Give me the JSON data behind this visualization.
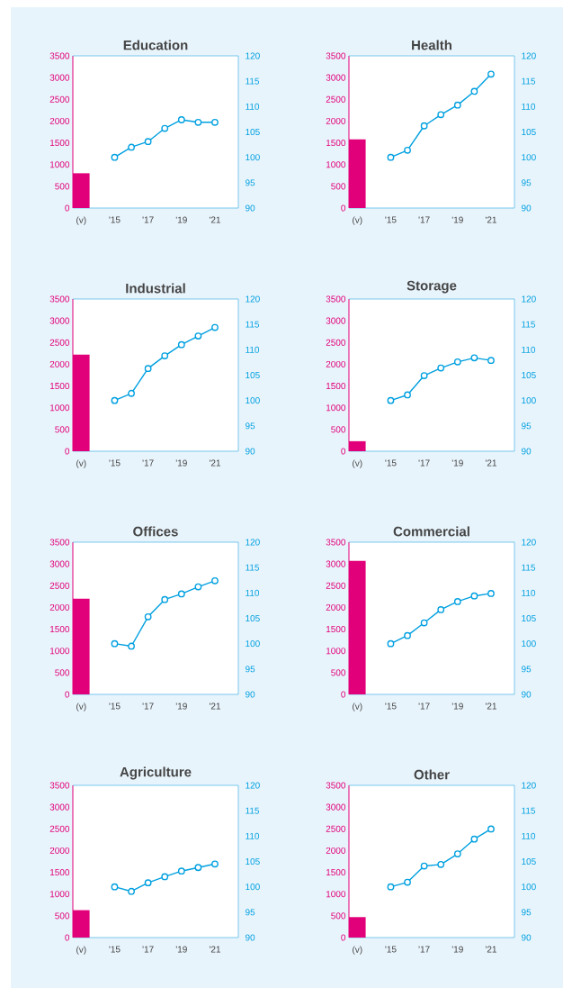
{
  "chart_data": [
    {
      "type": "bar",
      "title": "Education",
      "categories": [
        "(v)",
        null,
        "'15",
        null,
        "'17",
        null,
        "'19",
        null,
        "'21"
      ],
      "ylim": [
        0,
        3500
      ],
      "yticks": [
        0,
        500,
        1000,
        1500,
        2000,
        2500,
        3000,
        3500
      ],
      "y2lim": [
        90,
        120
      ],
      "y2ticks": [
        90,
        95,
        100,
        105,
        110,
        115,
        120
      ],
      "series": [
        {
          "color": "#e2007a",
          "values": [
            800,
            null,
            null,
            null,
            null,
            null,
            null,
            null,
            null
          ]
        },
        {
          "type": "line",
          "axis": "y2",
          "marker": "circle",
          "color": "#00a0e0",
          "values": [
            null,
            null,
            100,
            102,
            103.1,
            105.7,
            107.4,
            106.9,
            106.9
          ]
        }
      ]
    },
    {
      "type": "bar",
      "title": "Health",
      "categories": [
        "(v)",
        null,
        "'15",
        null,
        "'17",
        null,
        "'19",
        null,
        "'21"
      ],
      "ylim": [
        0,
        3500
      ],
      "yticks": [
        0,
        500,
        1000,
        1500,
        2000,
        2500,
        3000,
        3500
      ],
      "y2lim": [
        90,
        120
      ],
      "y2ticks": [
        90,
        95,
        100,
        105,
        110,
        115,
        120
      ],
      "series": [
        {
          "color": "#e2007a",
          "values": [
            1580,
            null,
            null,
            null,
            null,
            null,
            null,
            null,
            null
          ]
        },
        {
          "type": "line",
          "axis": "y2",
          "marker": "circle",
          "color": "#00a0e0",
          "values": [
            null,
            null,
            100,
            101.4,
            106.2,
            108.4,
            110.3,
            113,
            116.4
          ]
        }
      ]
    },
    {
      "type": "bar",
      "title": "Industrial",
      "categories": [
        "(v)",
        null,
        "'15",
        null,
        "'17",
        null,
        "'19",
        null,
        "'21"
      ],
      "ylim": [
        0,
        3500
      ],
      "yticks": [
        0,
        500,
        1000,
        1500,
        2000,
        2500,
        3000,
        3500
      ],
      "y2lim": [
        90,
        120
      ],
      "y2ticks": [
        90,
        95,
        100,
        105,
        110,
        115,
        120
      ],
      "series": [
        {
          "color": "#e2007a",
          "values": [
            2220,
            null,
            null,
            null,
            null,
            null,
            null,
            null,
            null
          ]
        },
        {
          "type": "line",
          "axis": "y2",
          "marker": "circle",
          "color": "#00a0e0",
          "values": [
            null,
            null,
            100,
            101.4,
            106.3,
            108.8,
            111,
            112.7,
            114.4
          ]
        }
      ]
    },
    {
      "type": "bar",
      "title": "Storage",
      "categories": [
        "(v)",
        null,
        "'15",
        null,
        "'17",
        null,
        "'19",
        null,
        "'21"
      ],
      "ylim": [
        0,
        3500
      ],
      "yticks": [
        0,
        500,
        1000,
        1500,
        2000,
        2500,
        3000,
        3500
      ],
      "y2lim": [
        90,
        120
      ],
      "y2ticks": [
        90,
        95,
        100,
        105,
        110,
        115,
        120
      ],
      "series": [
        {
          "color": "#e2007a",
          "values": [
            230,
            null,
            null,
            null,
            null,
            null,
            null,
            null,
            null
          ]
        },
        {
          "type": "line",
          "axis": "y2",
          "marker": "circle",
          "color": "#00a0e0",
          "values": [
            null,
            null,
            100,
            101.1,
            104.9,
            106.4,
            107.6,
            108.4,
            107.9
          ]
        }
      ]
    },
    {
      "type": "bar",
      "title": "Offices",
      "categories": [
        "(v)",
        null,
        "'15",
        null,
        "'17",
        null,
        "'19",
        null,
        "'21"
      ],
      "ylim": [
        0,
        3500
      ],
      "yticks": [
        0,
        500,
        1000,
        1500,
        2000,
        2500,
        3000,
        3500
      ],
      "y2lim": [
        90,
        120
      ],
      "y2ticks": [
        90,
        95,
        100,
        105,
        110,
        115,
        120
      ],
      "series": [
        {
          "color": "#e2007a",
          "values": [
            2200,
            null,
            null,
            null,
            null,
            null,
            null,
            null,
            null
          ]
        },
        {
          "type": "line",
          "axis": "y2",
          "marker": "circle",
          "color": "#00a0e0",
          "values": [
            null,
            null,
            100,
            99.5,
            105.3,
            108.7,
            109.8,
            111.2,
            112.4
          ]
        }
      ]
    },
    {
      "type": "bar",
      "title": "Commercial",
      "categories": [
        "(v)",
        null,
        "'15",
        null,
        "'17",
        null,
        "'19",
        null,
        "'21"
      ],
      "ylim": [
        0,
        3500
      ],
      "yticks": [
        0,
        500,
        1000,
        1500,
        2000,
        2500,
        3000,
        3500
      ],
      "y2lim": [
        90,
        120
      ],
      "y2ticks": [
        90,
        95,
        100,
        105,
        110,
        115,
        120
      ],
      "series": [
        {
          "color": "#e2007a",
          "values": [
            3070,
            null,
            null,
            null,
            null,
            null,
            null,
            null,
            null
          ]
        },
        {
          "type": "line",
          "axis": "y2",
          "marker": "circle",
          "color": "#00a0e0",
          "values": [
            null,
            null,
            100,
            101.6,
            104.1,
            106.7,
            108.3,
            109.4,
            109.9
          ]
        }
      ]
    },
    {
      "type": "bar",
      "title": "Agriculture",
      "categories": [
        "(v)",
        null,
        "'15",
        null,
        "'17",
        null,
        "'19",
        null,
        "'21"
      ],
      "ylim": [
        0,
        3500
      ],
      "yticks": [
        0,
        500,
        1000,
        1500,
        2000,
        2500,
        3000,
        3500
      ],
      "y2lim": [
        90,
        120
      ],
      "y2ticks": [
        90,
        95,
        100,
        105,
        110,
        115,
        120
      ],
      "series": [
        {
          "color": "#e2007a",
          "values": [
            630,
            null,
            null,
            null,
            null,
            null,
            null,
            null,
            null
          ]
        },
        {
          "type": "line",
          "axis": "y2",
          "marker": "circle",
          "color": "#00a0e0",
          "values": [
            null,
            null,
            100,
            99.1,
            100.8,
            102,
            103.1,
            103.8,
            104.5
          ]
        }
      ]
    },
    {
      "type": "bar",
      "title": "Other",
      "categories": [
        "(v)",
        null,
        "'15",
        null,
        "'17",
        null,
        "'19",
        null,
        "'21"
      ],
      "ylim": [
        0,
        3500
      ],
      "yticks": [
        0,
        500,
        1000,
        1500,
        2000,
        2500,
        3000,
        3500
      ],
      "y2lim": [
        90,
        120
      ],
      "y2ticks": [
        90,
        95,
        100,
        105,
        110,
        115,
        120
      ],
      "series": [
        {
          "color": "#e2007a",
          "values": [
            470,
            null,
            null,
            null,
            null,
            null,
            null,
            null,
            null
          ]
        },
        {
          "type": "line",
          "axis": "y2",
          "marker": "circle",
          "color": "#00a0e0",
          "values": [
            null,
            null,
            100,
            100.9,
            104.1,
            104.4,
            106.5,
            109.4,
            111.4
          ]
        }
      ]
    }
  ]
}
